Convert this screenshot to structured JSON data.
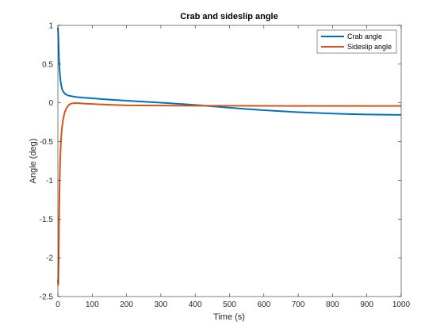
{
  "chart_data": {
    "type": "line",
    "title": "Crab and sideslip angle",
    "xlabel": "Time (s)",
    "ylabel": "Angle (deg)",
    "xlim": [
      0,
      1000
    ],
    "ylim": [
      -2.5,
      1
    ],
    "xticks": [
      0,
      100,
      200,
      300,
      400,
      500,
      600,
      700,
      800,
      900,
      1000
    ],
    "yticks": [
      -2.5,
      -2,
      -1.5,
      -1,
      -0.5,
      0,
      0.5,
      1
    ],
    "xtick_labels": [
      "0",
      "100",
      "200",
      "300",
      "400",
      "500",
      "600",
      "700",
      "800",
      "900",
      "1000"
    ],
    "ytick_labels": [
      "-2.5",
      "-2",
      "-1.5",
      "-1",
      "-0.5",
      "0",
      "0.5",
      "1"
    ],
    "grid": false,
    "legend_position": "top-right",
    "series": [
      {
        "name": "Crab angle",
        "color": "#0072BD",
        "x": [
          0,
          1,
          2,
          3,
          4,
          5,
          6,
          8,
          10,
          12,
          15,
          20,
          25,
          30,
          40,
          50,
          60,
          80,
          100,
          150,
          200,
          250,
          300,
          350,
          400,
          450,
          500,
          550,
          600,
          650,
          700,
          750,
          800,
          850,
          900,
          950,
          1000
        ],
        "y": [
          0.97,
          0.9,
          0.75,
          0.6,
          0.5,
          0.42,
          0.36,
          0.28,
          0.22,
          0.18,
          0.15,
          0.12,
          0.105,
          0.095,
          0.085,
          0.078,
          0.072,
          0.065,
          0.058,
          0.042,
          0.028,
          0.015,
          0.002,
          -0.012,
          -0.027,
          -0.045,
          -0.063,
          -0.08,
          -0.095,
          -0.108,
          -0.12,
          -0.13,
          -0.138,
          -0.145,
          -0.15,
          -0.153,
          -0.155
        ]
      },
      {
        "name": "Sideslip angle",
        "color": "#D95319",
        "x": [
          0,
          1,
          2,
          3,
          4,
          5,
          6,
          7,
          8,
          10,
          12,
          15,
          20,
          25,
          30,
          35,
          40,
          50,
          60,
          80,
          100,
          150,
          200,
          300,
          400,
          500,
          600,
          700,
          800,
          900,
          1000
        ],
        "y": [
          -2.28,
          -2.35,
          -2.1,
          -1.7,
          -1.35,
          -1.05,
          -0.85,
          -0.7,
          -0.58,
          -0.42,
          -0.32,
          -0.22,
          -0.12,
          -0.07,
          -0.035,
          -0.018,
          -0.008,
          -0.003,
          -0.004,
          -0.01,
          -0.015,
          -0.025,
          -0.032,
          -0.035,
          -0.037,
          -0.038,
          -0.039,
          -0.04,
          -0.04,
          -0.04,
          -0.04
        ]
      }
    ]
  }
}
